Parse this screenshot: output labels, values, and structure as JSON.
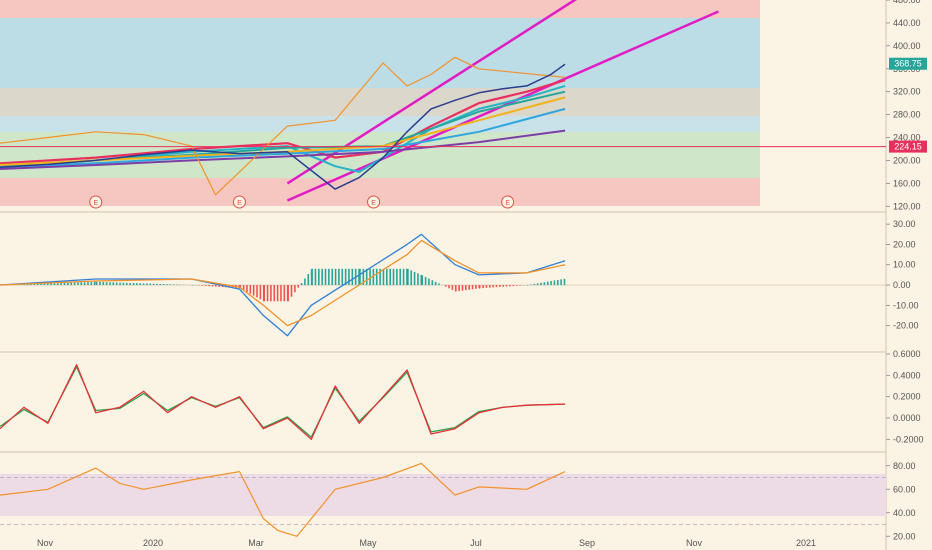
{
  "chart_data": [
    {
      "type": "line",
      "panel": "price",
      "ylim": [
        110,
        480
      ],
      "y_ticks": [
        "120.00",
        "160.00",
        "200.00",
        "240.00",
        "280.00",
        "320.00",
        "360.00",
        "400.00",
        "440.00",
        "480.00"
      ],
      "last_price": "368.75",
      "marked_level": "224.15",
      "price_series": [
        {
          "name": "",
          "color": "#2b3d8f",
          "x": [
            0,
            10,
            20,
            30,
            40,
            50,
            60,
            70,
            75,
            80,
            85,
            90,
            95,
            100,
            105,
            110,
            115,
            118
          ],
          "values": [
            188,
            193,
            200,
            210,
            218,
            212,
            215,
            150,
            170,
            205,
            250,
            290,
            305,
            318,
            325,
            330,
            350,
            368
          ]
        }
      ],
      "moving_averages": [
        {
          "color": "#e8305e",
          "x": [
            0,
            20,
            40,
            60,
            70,
            80,
            90,
            100,
            110,
            118
          ],
          "values": [
            195,
            205,
            220,
            230,
            205,
            215,
            260,
            300,
            320,
            340
          ]
        },
        {
          "color": "#26b3c7",
          "x": [
            0,
            20,
            40,
            60,
            70,
            75,
            80,
            90,
            100,
            110,
            118
          ],
          "values": [
            190,
            200,
            215,
            225,
            190,
            180,
            205,
            255,
            290,
            310,
            330
          ]
        },
        {
          "color": "#27a79b",
          "x": [
            0,
            20,
            40,
            60,
            80,
            100,
            118
          ],
          "values": [
            190,
            200,
            210,
            222,
            225,
            285,
            320
          ]
        },
        {
          "color": "#f2b21c",
          "x": [
            0,
            20,
            40,
            60,
            80,
            100,
            118
          ],
          "values": [
            192,
            200,
            208,
            215,
            225,
            270,
            310
          ]
        },
        {
          "color": "#30a6e0",
          "x": [
            0,
            20,
            40,
            60,
            80,
            100,
            118
          ],
          "values": [
            188,
            195,
            205,
            212,
            220,
            250,
            290
          ]
        },
        {
          "color": "#7d3ea8",
          "x": [
            0,
            20,
            40,
            60,
            80,
            100,
            118
          ],
          "values": [
            185,
            192,
            200,
            207,
            215,
            232,
            252
          ]
        }
      ],
      "rsi_line": {
        "color": "#f2922a",
        "x": [
          0,
          10,
          20,
          30,
          40,
          45,
          50,
          55,
          60,
          70,
          80,
          85,
          90,
          95,
          100,
          118
        ],
        "values": [
          230,
          240,
          250,
          245,
          225,
          140,
          180,
          220,
          260,
          270,
          370,
          330,
          350,
          380,
          360,
          345
        ]
      },
      "channel_lines": [
        {
          "color": "#e01dc4",
          "x": [
            60,
            135
          ],
          "values": [
            160,
            560
          ]
        },
        {
          "color": "#e01dc4",
          "x": [
            60,
            150
          ],
          "values": [
            130,
            460
          ]
        }
      ],
      "earnings_markers": [
        "E",
        "E",
        "E",
        "E"
      ],
      "x_range": [
        0,
        185
      ]
    },
    {
      "type": "bar",
      "panel": "macd",
      "ylim": [
        -32,
        35
      ],
      "y_ticks": [
        "30.00",
        "20.00",
        "10.00",
        "0.00",
        "-10.00",
        "-20.00"
      ],
      "macd": {
        "color": "#2f7fd6",
        "x": [
          0,
          20,
          40,
          50,
          55,
          60,
          65,
          75,
          85,
          88,
          95,
          100,
          110,
          118
        ],
        "values": [
          0,
          3,
          3,
          -2,
          -15,
          -25,
          -10,
          5,
          20,
          25,
          10,
          5,
          6,
          12
        ]
      },
      "signal": {
        "color": "#f2922a",
        "x": [
          0,
          20,
          40,
          50,
          55,
          60,
          65,
          75,
          85,
          88,
          95,
          100,
          110,
          118
        ],
        "values": [
          0,
          2,
          3,
          -1,
          -10,
          -20,
          -15,
          0,
          15,
          22,
          12,
          6,
          6,
          10
        ]
      }
    },
    {
      "type": "line",
      "panel": "oscillator",
      "ylim": [
        -0.3,
        0.6
      ],
      "y_ticks": [
        "0.6000",
        "0.4000",
        "0.2000",
        "0.0000",
        "-0.2000"
      ],
      "fast": {
        "color": "#e8303a",
        "x": [
          0,
          5,
          10,
          16,
          20,
          25,
          30,
          35,
          40,
          45,
          50,
          55,
          60,
          65,
          70,
          75,
          80,
          85,
          90,
          95,
          100,
          105,
          110,
          118
        ],
        "values": [
          -0.1,
          0.1,
          -0.05,
          0.5,
          0.05,
          0.1,
          0.25,
          0.05,
          0.2,
          0.1,
          0.2,
          -0.1,
          0.0,
          -0.2,
          0.3,
          -0.05,
          0.2,
          0.45,
          -0.15,
          -0.1,
          0.05,
          0.1,
          0.12,
          0.13
        ]
      },
      "slow": {
        "color": "#27a44a",
        "x": [
          0,
          5,
          10,
          16,
          20,
          25,
          30,
          35,
          40,
          45,
          50,
          55,
          60,
          65,
          70,
          75,
          80,
          85,
          90,
          95,
          100,
          105,
          110,
          118
        ],
        "values": [
          -0.08,
          0.08,
          -0.04,
          0.48,
          0.07,
          0.09,
          0.23,
          0.07,
          0.19,
          0.11,
          0.19,
          -0.09,
          0.01,
          -0.18,
          0.28,
          -0.03,
          0.19,
          0.43,
          -0.13,
          -0.09,
          0.06,
          0.1,
          0.12,
          0.13
        ]
      }
    },
    {
      "type": "line",
      "panel": "rsi",
      "ylim": [
        10,
        90
      ],
      "y_ticks": [
        "80.00",
        "60.00",
        "40.00",
        "20.00"
      ],
      "rsi": {
        "color": "#f2922a",
        "x": [
          0,
          10,
          20,
          25,
          30,
          40,
          50,
          55,
          58,
          62,
          66,
          70,
          80,
          88,
          95,
          100,
          110,
          118
        ],
        "values": [
          55,
          60,
          78,
          65,
          60,
          68,
          75,
          35,
          25,
          20,
          40,
          60,
          70,
          82,
          55,
          62,
          60,
          75
        ]
      },
      "band": [
        30,
        70
      ]
    }
  ],
  "x_axis_labels": [
    "Nov",
    "2020",
    "Mar",
    "May",
    "Jul",
    "Sep",
    "Nov",
    "2021"
  ],
  "colors": {
    "background": "#fbf3e3",
    "up": "#26a69a",
    "down": "#ef5350",
    "channel": "#e01dc4"
  }
}
